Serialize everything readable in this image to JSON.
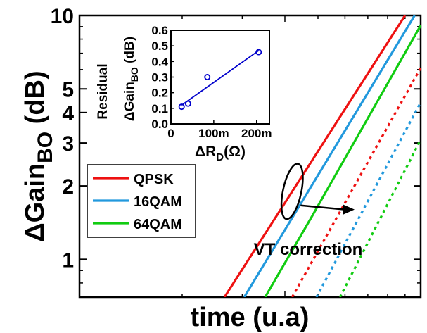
{
  "chart_data": [
    {
      "type": "line",
      "xlabel": "time (u.a)",
      "ylabel_main": "ΔGain",
      "ylabel_sub": "BO",
      "ylabel_unit": " (dB)",
      "yscale": "log",
      "ylim": [
        0.7,
        10
      ],
      "yticks": [
        1,
        2,
        3,
        4,
        5,
        10
      ],
      "xscale": "log",
      "xlim": [
        1,
        10
      ],
      "legend": {
        "placement": "center-left",
        "entries": [
          "QPSK",
          "16QAM",
          "64QAM"
        ]
      },
      "series": [
        {
          "name": "QPSK",
          "color": "#ee1111",
          "style": "solid",
          "x": [
            2.66,
            9.0
          ],
          "y": [
            0.7,
            10
          ]
        },
        {
          "name": "16QAM",
          "color": "#2299dd",
          "style": "solid",
          "x": [
            3.04,
            9.6
          ],
          "y": [
            0.7,
            10
          ]
        },
        {
          "name": "64QAM",
          "color": "#11cc11",
          "style": "solid",
          "x": [
            3.5,
            4.8
          ],
          "y": [
            0.7,
            1.5
          ]
        },
        {
          "name": "64QAM",
          "color": "#11cc11",
          "style": "solid",
          "x": [
            4.8,
            10.0
          ],
          "y": [
            1.5,
            9.1
          ]
        },
        {
          "name": "QPSK",
          "color": "#ee1111",
          "style": "dotted",
          "x": [
            4.2,
            10.0
          ],
          "y": [
            0.7,
            6.1
          ]
        },
        {
          "name": "16QAM",
          "color": "#2299dd",
          "style": "dotted",
          "x": [
            4.95,
            10.0
          ],
          "y": [
            0.7,
            4.4
          ]
        },
        {
          "name": "64QAM",
          "color": "#11cc11",
          "style": "dotted",
          "x": [
            5.8,
            10.0
          ],
          "y": [
            0.7,
            3.1
          ]
        }
      ],
      "annotations": {
        "vt_text": "VT correction",
        "ellipse_center": {
          "x": 4.2,
          "y": 1.9
        },
        "arrow_tip": {
          "x": 6.4,
          "y": 1.6
        }
      }
    },
    {
      "type": "scatter",
      "title": "Residual",
      "xlabel_main": "ΔR",
      "xlabel_sub": "D",
      "xlabel_unit": "(Ω)",
      "ylabel_main": "ΔGain",
      "ylabel_sub": "BO",
      "ylabel_unit": " (dB)",
      "xlim": [
        0,
        0.23
      ],
      "ylim": [
        0,
        0.6
      ],
      "xticks": [
        0,
        0.1,
        0.2
      ],
      "xtick_labels": [
        "0",
        "100m",
        "200m"
      ],
      "yticks": [
        0.0,
        0.1,
        0.2,
        0.3,
        0.4,
        0.5,
        0.6
      ],
      "ytick_labels": [
        "0.0",
        "0.1",
        "0.2",
        "0.3",
        "0.4",
        "0.5",
        "0.6"
      ],
      "points": [
        {
          "x": 0.025,
          "y": 0.11
        },
        {
          "x": 0.04,
          "y": 0.13
        },
        {
          "x": 0.085,
          "y": 0.3
        },
        {
          "x": 0.205,
          "y": 0.46
        }
      ],
      "fit_line": {
        "x": [
          0.025,
          0.205
        ],
        "y": [
          0.12,
          0.47
        ]
      },
      "color": "#0000cc"
    }
  ]
}
